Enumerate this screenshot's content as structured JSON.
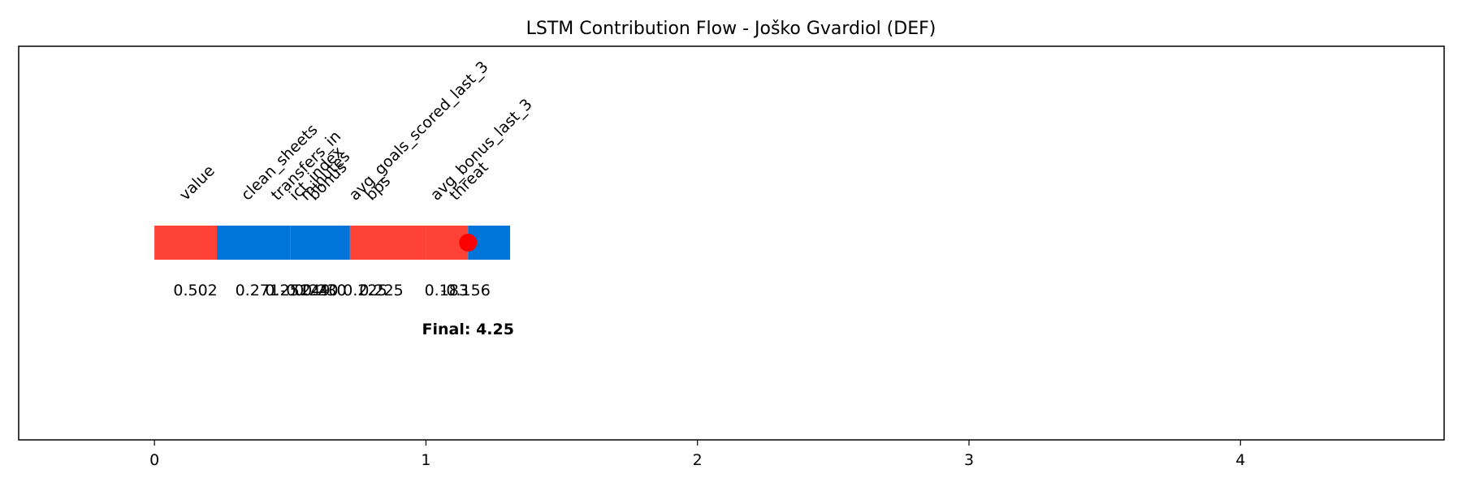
{
  "chart_data": {
    "type": "bar",
    "orientation": "horizontal-waterfall",
    "title": "LSTM Contribution Flow - Joško Gvardiol (DEF)",
    "xlabel": "",
    "ylabel": "",
    "xlim": [
      -0.5,
      4.75
    ],
    "xticks": [
      0,
      1,
      2,
      3,
      4
    ],
    "grid": false,
    "legend": "none",
    "colors": {
      "positive": "#ff4136",
      "negative": "#0074d9",
      "marker": "#ff0000"
    },
    "segments": [
      {
        "label": "value",
        "value": 0.502,
        "value_text": "0.502",
        "start": 0.0,
        "end": 0.23,
        "sign": "positive"
      },
      {
        "label": "clean_sheets",
        "value": 0.271,
        "value_text": "0.271",
        "start": 0.23,
        "end": 0.5,
        "sign": "negative"
      },
      {
        "label": "transfers_in",
        "value": 0.251,
        "value_text": "0.251",
        "start": 0.5,
        "end": 0.5,
        "sign": "negative"
      },
      {
        "label": "ict_index",
        "value": -0.249,
        "value_text": "-0.249",
        "start": 0.5,
        "end": 0.72,
        "sign": "negative"
      },
      {
        "label": "minutes",
        "value": 0.24,
        "value_text": "0.240",
        "start": 0.72,
        "end": 0.72,
        "sign": "negative"
      },
      {
        "label": "bonus",
        "value": 0.23,
        "value_text": "0.230",
        "start": 0.72,
        "end": 0.72,
        "sign": "negative"
      },
      {
        "label": "avg_goals_scored_last_3",
        "value": 0.225,
        "value_text": "0.225",
        "start": 0.72,
        "end": 1.0,
        "sign": "positive"
      },
      {
        "label": "bps",
        "value": 0.225,
        "value_text": "0.225",
        "start": 1.0,
        "end": 1.0,
        "sign": "positive"
      },
      {
        "label": "avg_bonus_last_3",
        "value": 0.183,
        "value_text": "0.183",
        "start": 1.0,
        "end": 1.155,
        "sign": "positive"
      },
      {
        "label": "threat",
        "value": -0.156,
        "value_text": "-0.156",
        "start": 1.155,
        "end": 1.31,
        "sign": "negative"
      }
    ],
    "bar_positions": [
      0.115,
      0.343,
      0.453,
      0.52,
      0.56,
      0.59,
      0.74,
      0.8,
      1.04,
      1.11
    ],
    "marker_x": 1.155,
    "final_text": "Final: 4.25",
    "final_x": 1.155
  }
}
